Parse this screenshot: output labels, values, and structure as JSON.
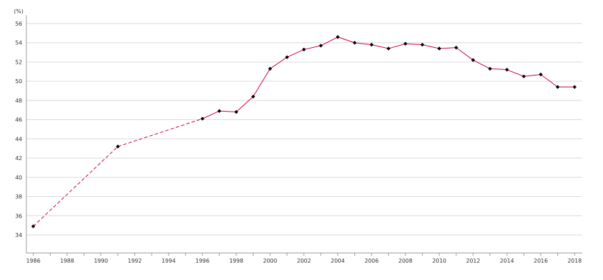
{
  "chart_data": {
    "type": "line",
    "unit_label": "(%)",
    "title": "",
    "xlabel": "",
    "ylabel": "",
    "xlim": [
      1986,
      2018
    ],
    "ylim": [
      32,
      57
    ],
    "y_ticks": [
      34,
      36,
      38,
      40,
      42,
      44,
      46,
      48,
      50,
      52,
      54,
      56
    ],
    "x_ticks": [
      1986,
      1988,
      1990,
      1992,
      1994,
      1996,
      1998,
      2000,
      2002,
      2004,
      2006,
      2008,
      2010,
      2012,
      2014,
      2016,
      2018
    ],
    "grid": true,
    "legend": "none",
    "series": [
      {
        "line_color": "#cc0033",
        "marker_color": "#000000",
        "dashed_segments": [
          [
            1986,
            1991
          ],
          [
            1991,
            1996
          ]
        ],
        "x": [
          1986,
          1991,
          1996,
          1997,
          1998,
          1999,
          2000,
          2001,
          2002,
          2003,
          2004,
          2005,
          2006,
          2007,
          2008,
          2009,
          2010,
          2011,
          2012,
          2013,
          2014,
          2015,
          2016,
          2017,
          2018
        ],
        "y": [
          34.9,
          43.2,
          46.1,
          46.9,
          46.8,
          48.4,
          51.3,
          52.5,
          53.3,
          53.7,
          54.6,
          54.0,
          53.8,
          53.4,
          53.9,
          53.8,
          53.4,
          53.5,
          52.2,
          51.3,
          51.2,
          50.5,
          50.7,
          49.4,
          49.4
        ]
      }
    ]
  }
}
